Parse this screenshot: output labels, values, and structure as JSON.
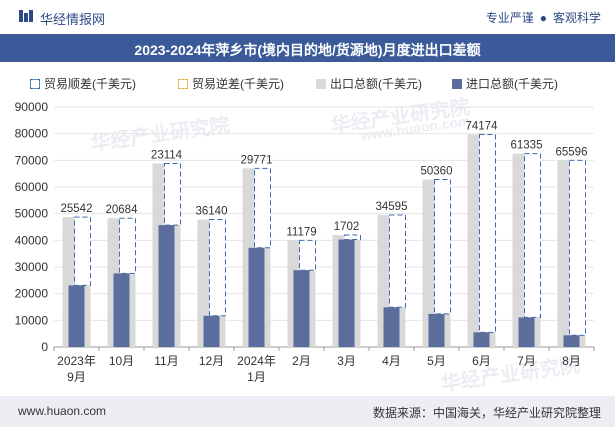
{
  "header": {
    "site_name": "华经情报网",
    "tagline_left": "专业严谨",
    "tagline_sep": "●",
    "tagline_right": "客观科学"
  },
  "watermark": {
    "cn": "华经产业研究院",
    "url": "www.huaon.com"
  },
  "footer": {
    "url": "www.huaon.com",
    "source": "数据来源：中国海关，华经产业研究院整理"
  },
  "colors": {
    "export": "#d9d9d9",
    "import": "#5a6d9c",
    "surplus_border": "#3a6ab0",
    "title_bg": "#3a5a99"
  },
  "chart_data": {
    "type": "bar",
    "title": "2023-2024年萍乡市(境内目的地/货源地)月度进出口差额",
    "categories": [
      "2023年\n9月",
      "10月",
      "11月",
      "12月",
      "2024年\n1月",
      "2月",
      "3月",
      "4月",
      "5月",
      "6月",
      "7月",
      "8月"
    ],
    "ylim": [
      0,
      90000
    ],
    "yticks": [
      0,
      10000,
      20000,
      30000,
      40000,
      50000,
      60000,
      70000,
      80000,
      90000
    ],
    "grid": true,
    "legend_position": "top",
    "series": [
      {
        "name": "贸易顺差(千美元)",
        "values": [
          25542,
          20684,
          23114,
          36140,
          29771,
          11179,
          1702,
          34595,
          50360,
          74174,
          61335,
          65596
        ]
      },
      {
        "name": "贸易逆差(千美元)",
        "values": [
          0,
          0,
          0,
          0,
          0,
          0,
          0,
          0,
          0,
          0,
          0,
          0
        ]
      },
      {
        "name": "出口总额(千美元)",
        "values": [
          48700,
          48300,
          68800,
          47800,
          67000,
          40000,
          42000,
          49500,
          62800,
          79700,
          72500,
          70000
        ]
      },
      {
        "name": "进口总额(千美元)",
        "values": [
          23100,
          27600,
          45700,
          11700,
          37200,
          28800,
          40300,
          14900,
          12400,
          5500,
          11100,
          4400
        ]
      }
    ],
    "data_labels": [
      "25542",
      "20684",
      "23114",
      "36140",
      "29771",
      "11179",
      "1702",
      "34595",
      "50360",
      "74174",
      "61335",
      "65596"
    ]
  }
}
